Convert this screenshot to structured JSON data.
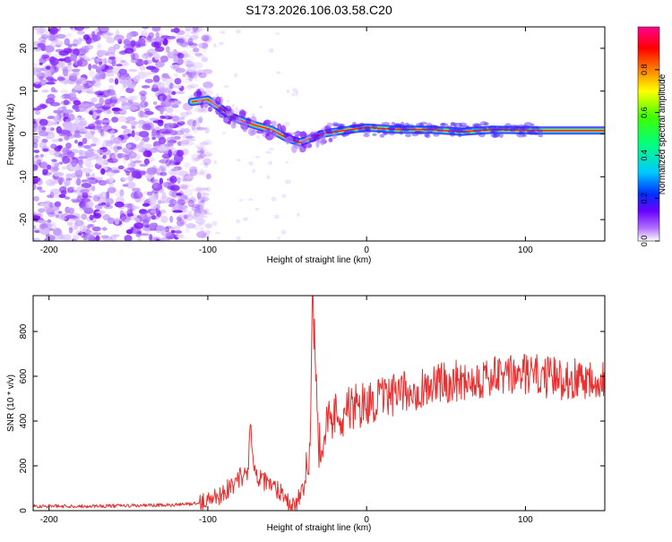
{
  "title": "S173.2026.106.03.58.C20",
  "colors": {
    "snr_line": "#e83030",
    "axis": "#000000",
    "spectro_low": "#9b30ff",
    "spectro_band_core": "#ff2020"
  },
  "chart_data": [
    {
      "type": "heatmap",
      "name": "spectrogram",
      "xlabel": "Height of straight line (km)",
      "ylabel": "Frequency (Hz)",
      "xlim": [
        -210,
        150
      ],
      "ylim": [
        -25,
        25
      ],
      "xticks": [
        -200,
        -100,
        0,
        100
      ],
      "yticks": [
        -20,
        -10,
        0,
        10,
        20
      ],
      "colorbar": {
        "label": "Normalized spectral amplitude",
        "range": [
          0,
          1
        ],
        "ticks": [
          0.0,
          0.2,
          0.4,
          0.6,
          0.8
        ]
      },
      "carrier_track": [
        {
          "x": -110,
          "freq": 7.5
        },
        {
          "x": -100,
          "freq": 8.0
        },
        {
          "x": -92,
          "freq": 6.0
        },
        {
          "x": -85,
          "freq": 4.0
        },
        {
          "x": -78,
          "freq": 3.0
        },
        {
          "x": -70,
          "freq": 2.0
        },
        {
          "x": -60,
          "freq": 1.0
        },
        {
          "x": -50,
          "freq": -1.0
        },
        {
          "x": -42,
          "freq": -2.0
        },
        {
          "x": -35,
          "freq": -1.0
        },
        {
          "x": -28,
          "freq": 0.0
        },
        {
          "x": -20,
          "freq": 0.5
        },
        {
          "x": -10,
          "freq": 1.0
        },
        {
          "x": 0,
          "freq": 1.5
        },
        {
          "x": 20,
          "freq": 1.0
        },
        {
          "x": 40,
          "freq": 1.0
        },
        {
          "x": 60,
          "freq": 0.5
        },
        {
          "x": 80,
          "freq": 1.0
        },
        {
          "x": 105,
          "freq": 0.8
        },
        {
          "x": 150,
          "freq": 0.8
        }
      ],
      "noise_region_xmax": -105
    },
    {
      "type": "line",
      "name": "snr",
      "xlabel": "Height of straight line (km)",
      "ylabel": "SNR (10 * v/v)",
      "xlim": [
        -210,
        150
      ],
      "ylim": [
        0,
        960
      ],
      "xticks": [
        -200,
        -100,
        0,
        100
      ],
      "yticks": [
        0,
        200,
        400,
        600,
        800
      ],
      "series": [
        {
          "name": "SNR",
          "x": [
            -210,
            -180,
            -150,
            -120,
            -105,
            -95,
            -85,
            -80,
            -75,
            -73,
            -70,
            -60,
            -52,
            -48,
            -45,
            -40,
            -36,
            -34,
            -30,
            -25,
            -20,
            -10,
            0,
            10,
            20,
            30,
            40,
            55,
            70,
            90,
            100,
            110,
            120,
            135,
            150
          ],
          "values": [
            20,
            20,
            22,
            25,
            35,
            60,
            110,
            150,
            160,
            380,
            150,
            110,
            80,
            20,
            30,
            80,
            250,
            960,
            300,
            380,
            430,
            450,
            480,
            500,
            520,
            540,
            560,
            580,
            590,
            600,
            610,
            600,
            590,
            590,
            600
          ]
        }
      ]
    }
  ]
}
